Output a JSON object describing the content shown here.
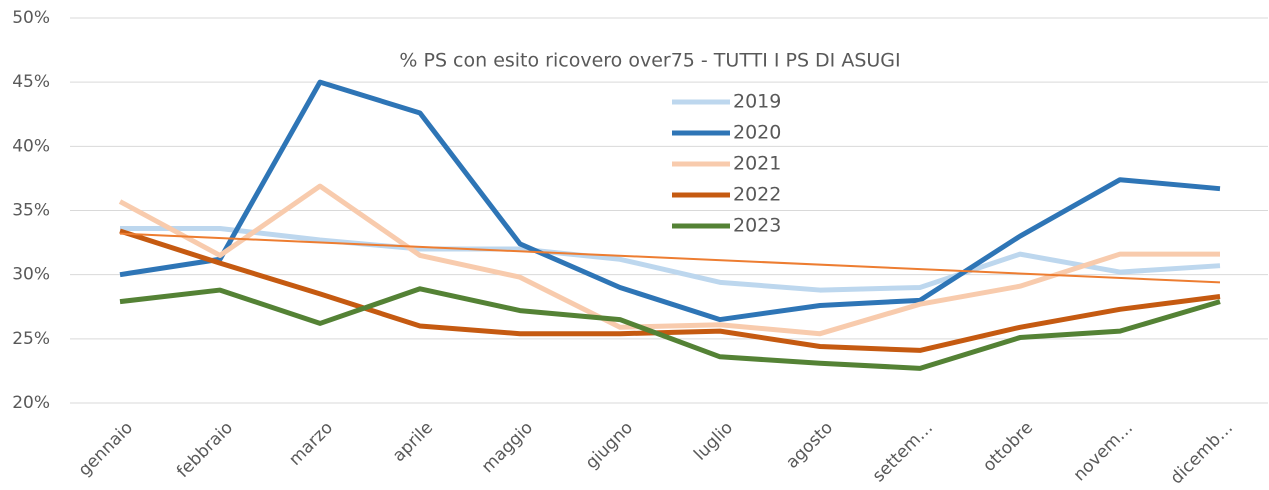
{
  "chart_data": {
    "type": "line",
    "title": "% PS con esito ricovero over75 - TUTTI I PS DI ASUGI",
    "categories": [
      "gennaio",
      "febbraio",
      "marzo",
      "aprile",
      "maggio",
      "giugno",
      "luglio",
      "agosto",
      "settem…",
      "ottobre",
      "novem…",
      "dicemb…"
    ],
    "series": [
      {
        "name": "2019",
        "color": "#bdd7ee",
        "values": [
          33.6,
          33.6,
          32.7,
          32.0,
          32.0,
          31.2,
          29.4,
          28.8,
          29.0,
          31.6,
          30.2,
          30.7
        ]
      },
      {
        "name": "2020",
        "color": "#2e75b6",
        "values": [
          30.0,
          31.2,
          45.0,
          42.6,
          32.4,
          29.0,
          26.5,
          27.6,
          28.0,
          33.0,
          37.4,
          36.7
        ]
      },
      {
        "name": "2021",
        "color": "#f8cbad",
        "values": [
          35.7,
          31.5,
          36.9,
          31.5,
          29.8,
          25.9,
          26.1,
          25.4,
          27.7,
          29.1,
          31.6,
          31.6
        ]
      },
      {
        "name": "2022",
        "color": "#c55a11",
        "values": [
          33.4,
          30.9,
          28.5,
          26.0,
          25.4,
          25.4,
          25.6,
          24.4,
          24.1,
          25.9,
          27.3,
          28.3
        ]
      },
      {
        "name": "2023",
        "color": "#548235",
        "values": [
          27.9,
          28.8,
          26.2,
          28.9,
          27.2,
          26.5,
          23.6,
          23.1,
          22.7,
          25.1,
          25.6,
          27.9
        ]
      }
    ],
    "trend": {
      "color": "#ed7d31",
      "values": [
        33.2,
        29.4
      ]
    },
    "ylim": [
      20,
      50
    ],
    "yticks": [
      {
        "value": 20,
        "label": "20%"
      },
      {
        "value": 25,
        "label": "25%"
      },
      {
        "value": 30,
        "label": "30%"
      },
      {
        "value": 35,
        "label": "35%"
      },
      {
        "value": 40,
        "label": "40%"
      },
      {
        "value": 45,
        "label": "45%"
      },
      {
        "value": 50,
        "label": "50%"
      }
    ],
    "grid": true
  }
}
